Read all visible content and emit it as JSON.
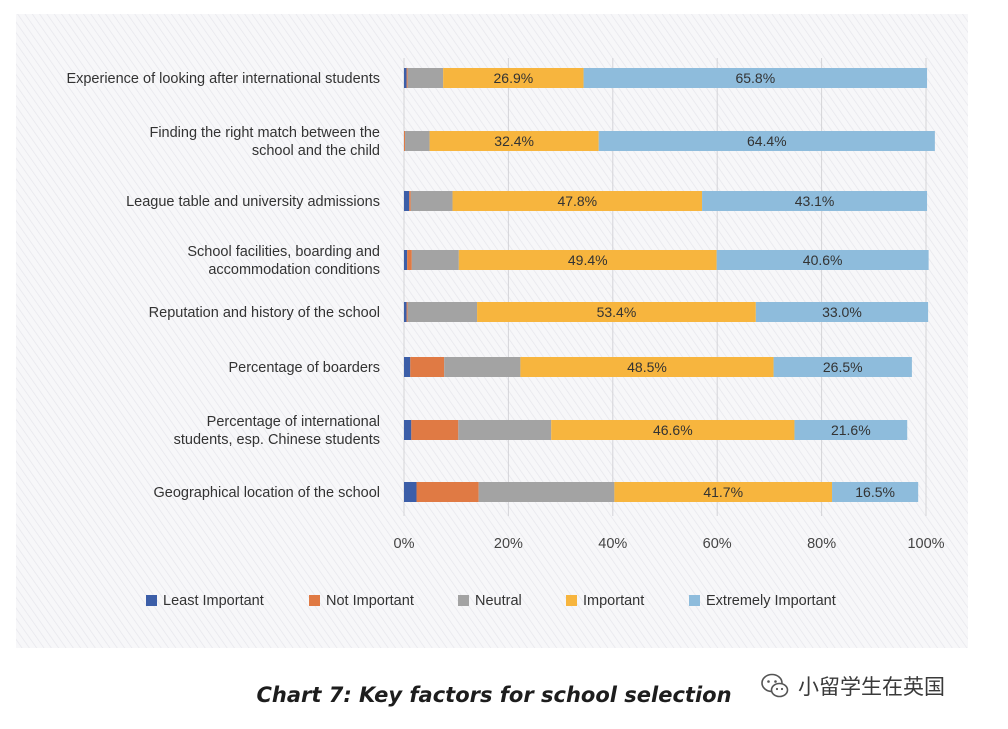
{
  "caption": "Chart 7: Key factors for school selection",
  "watermark": "小留学生在英国",
  "chart_data": {
    "type": "bar",
    "orientation": "horizontal",
    "stacked": true,
    "title": "",
    "xlabel": "",
    "ylabel": "",
    "xlim": [
      0,
      100
    ],
    "x_ticks": [
      "0%",
      "20%",
      "40%",
      "60%",
      "80%",
      "100%"
    ],
    "grid": true,
    "legend_position": "bottom",
    "categories": [
      [
        "Experience of looking after international students"
      ],
      [
        "Finding the right match between the",
        "school and the child"
      ],
      [
        "League table and university admissions"
      ],
      [
        "School facilities, boarding and",
        "accommodation conditions"
      ],
      [
        "Reputation and history of the school"
      ],
      [
        "Percentage of boarders"
      ],
      [
        "Percentage of international",
        "students, esp. Chinese students"
      ],
      [
        "Geographical location of the school"
      ]
    ],
    "series": [
      {
        "name": "Least Important",
        "color": "#3c5ea8",
        "values": [
          0.5,
          0.0,
          1.0,
          0.6,
          0.5,
          1.2,
          1.4,
          2.4
        ]
      },
      {
        "name": "Not Important",
        "color": "#e07a44",
        "values": [
          0.2,
          0.2,
          0.3,
          0.9,
          0.2,
          6.5,
          9.0,
          11.9
        ]
      },
      {
        "name": "Neutral",
        "color": "#a3a3a3",
        "values": [
          6.8,
          4.7,
          8.0,
          9.0,
          13.3,
          14.6,
          17.8,
          26.0
        ]
      },
      {
        "name": "Important",
        "color": "#f7b53e",
        "values": [
          26.9,
          32.4,
          47.8,
          49.4,
          53.4,
          48.5,
          46.6,
          41.7
        ]
      },
      {
        "name": "Extremely Important",
        "color": "#8ebcdc",
        "values": [
          65.8,
          64.4,
          43.1,
          40.6,
          33.0,
          26.5,
          21.6,
          16.5
        ]
      }
    ],
    "data_labels": [
      [
        "26.9%",
        "65.8%"
      ],
      [
        "32.4%",
        "64.4%"
      ],
      [
        "47.8%",
        "43.1%"
      ],
      [
        "49.4%",
        "40.6%"
      ],
      [
        "53.4%",
        "33.0%"
      ],
      [
        "48.5%",
        "26.5%"
      ],
      [
        "46.6%",
        "21.6%"
      ],
      [
        "41.7%",
        "16.5%"
      ]
    ]
  }
}
